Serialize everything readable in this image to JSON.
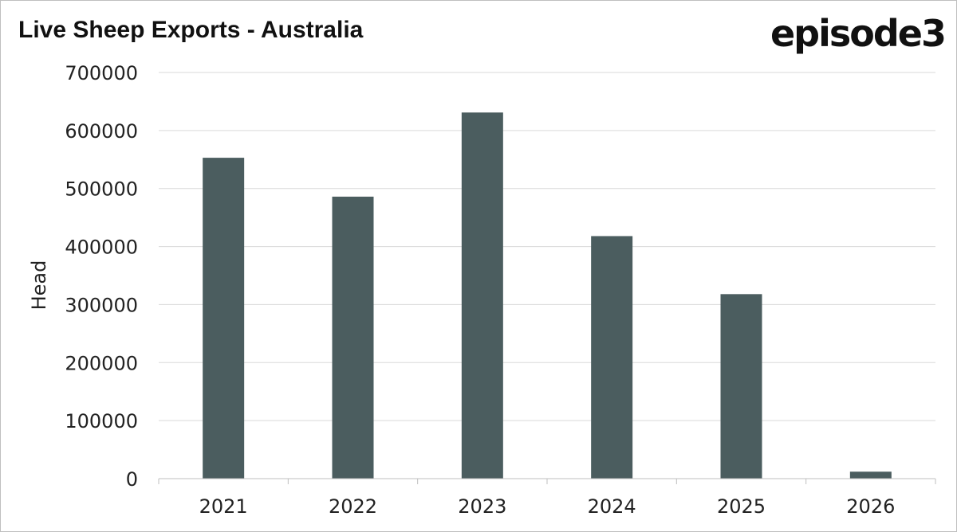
{
  "logo_text": "episode3",
  "chart_data": {
    "type": "bar",
    "title": "Live Sheep Exports - Australia",
    "xlabel": "",
    "ylabel": "Head",
    "categories": [
      "2021",
      "2022",
      "2023",
      "2024",
      "2025",
      "2026"
    ],
    "values": [
      553000,
      486000,
      631000,
      418000,
      318000,
      12000
    ],
    "ylim": [
      0,
      700000
    ],
    "yticks": [
      "0",
      "100000",
      "200000",
      "300000",
      "400000",
      "500000",
      "600000",
      "700000"
    ],
    "grid": true,
    "legend": "none",
    "bar_color": "#4b5d5f",
    "grid_color": "#d9d9d9"
  }
}
